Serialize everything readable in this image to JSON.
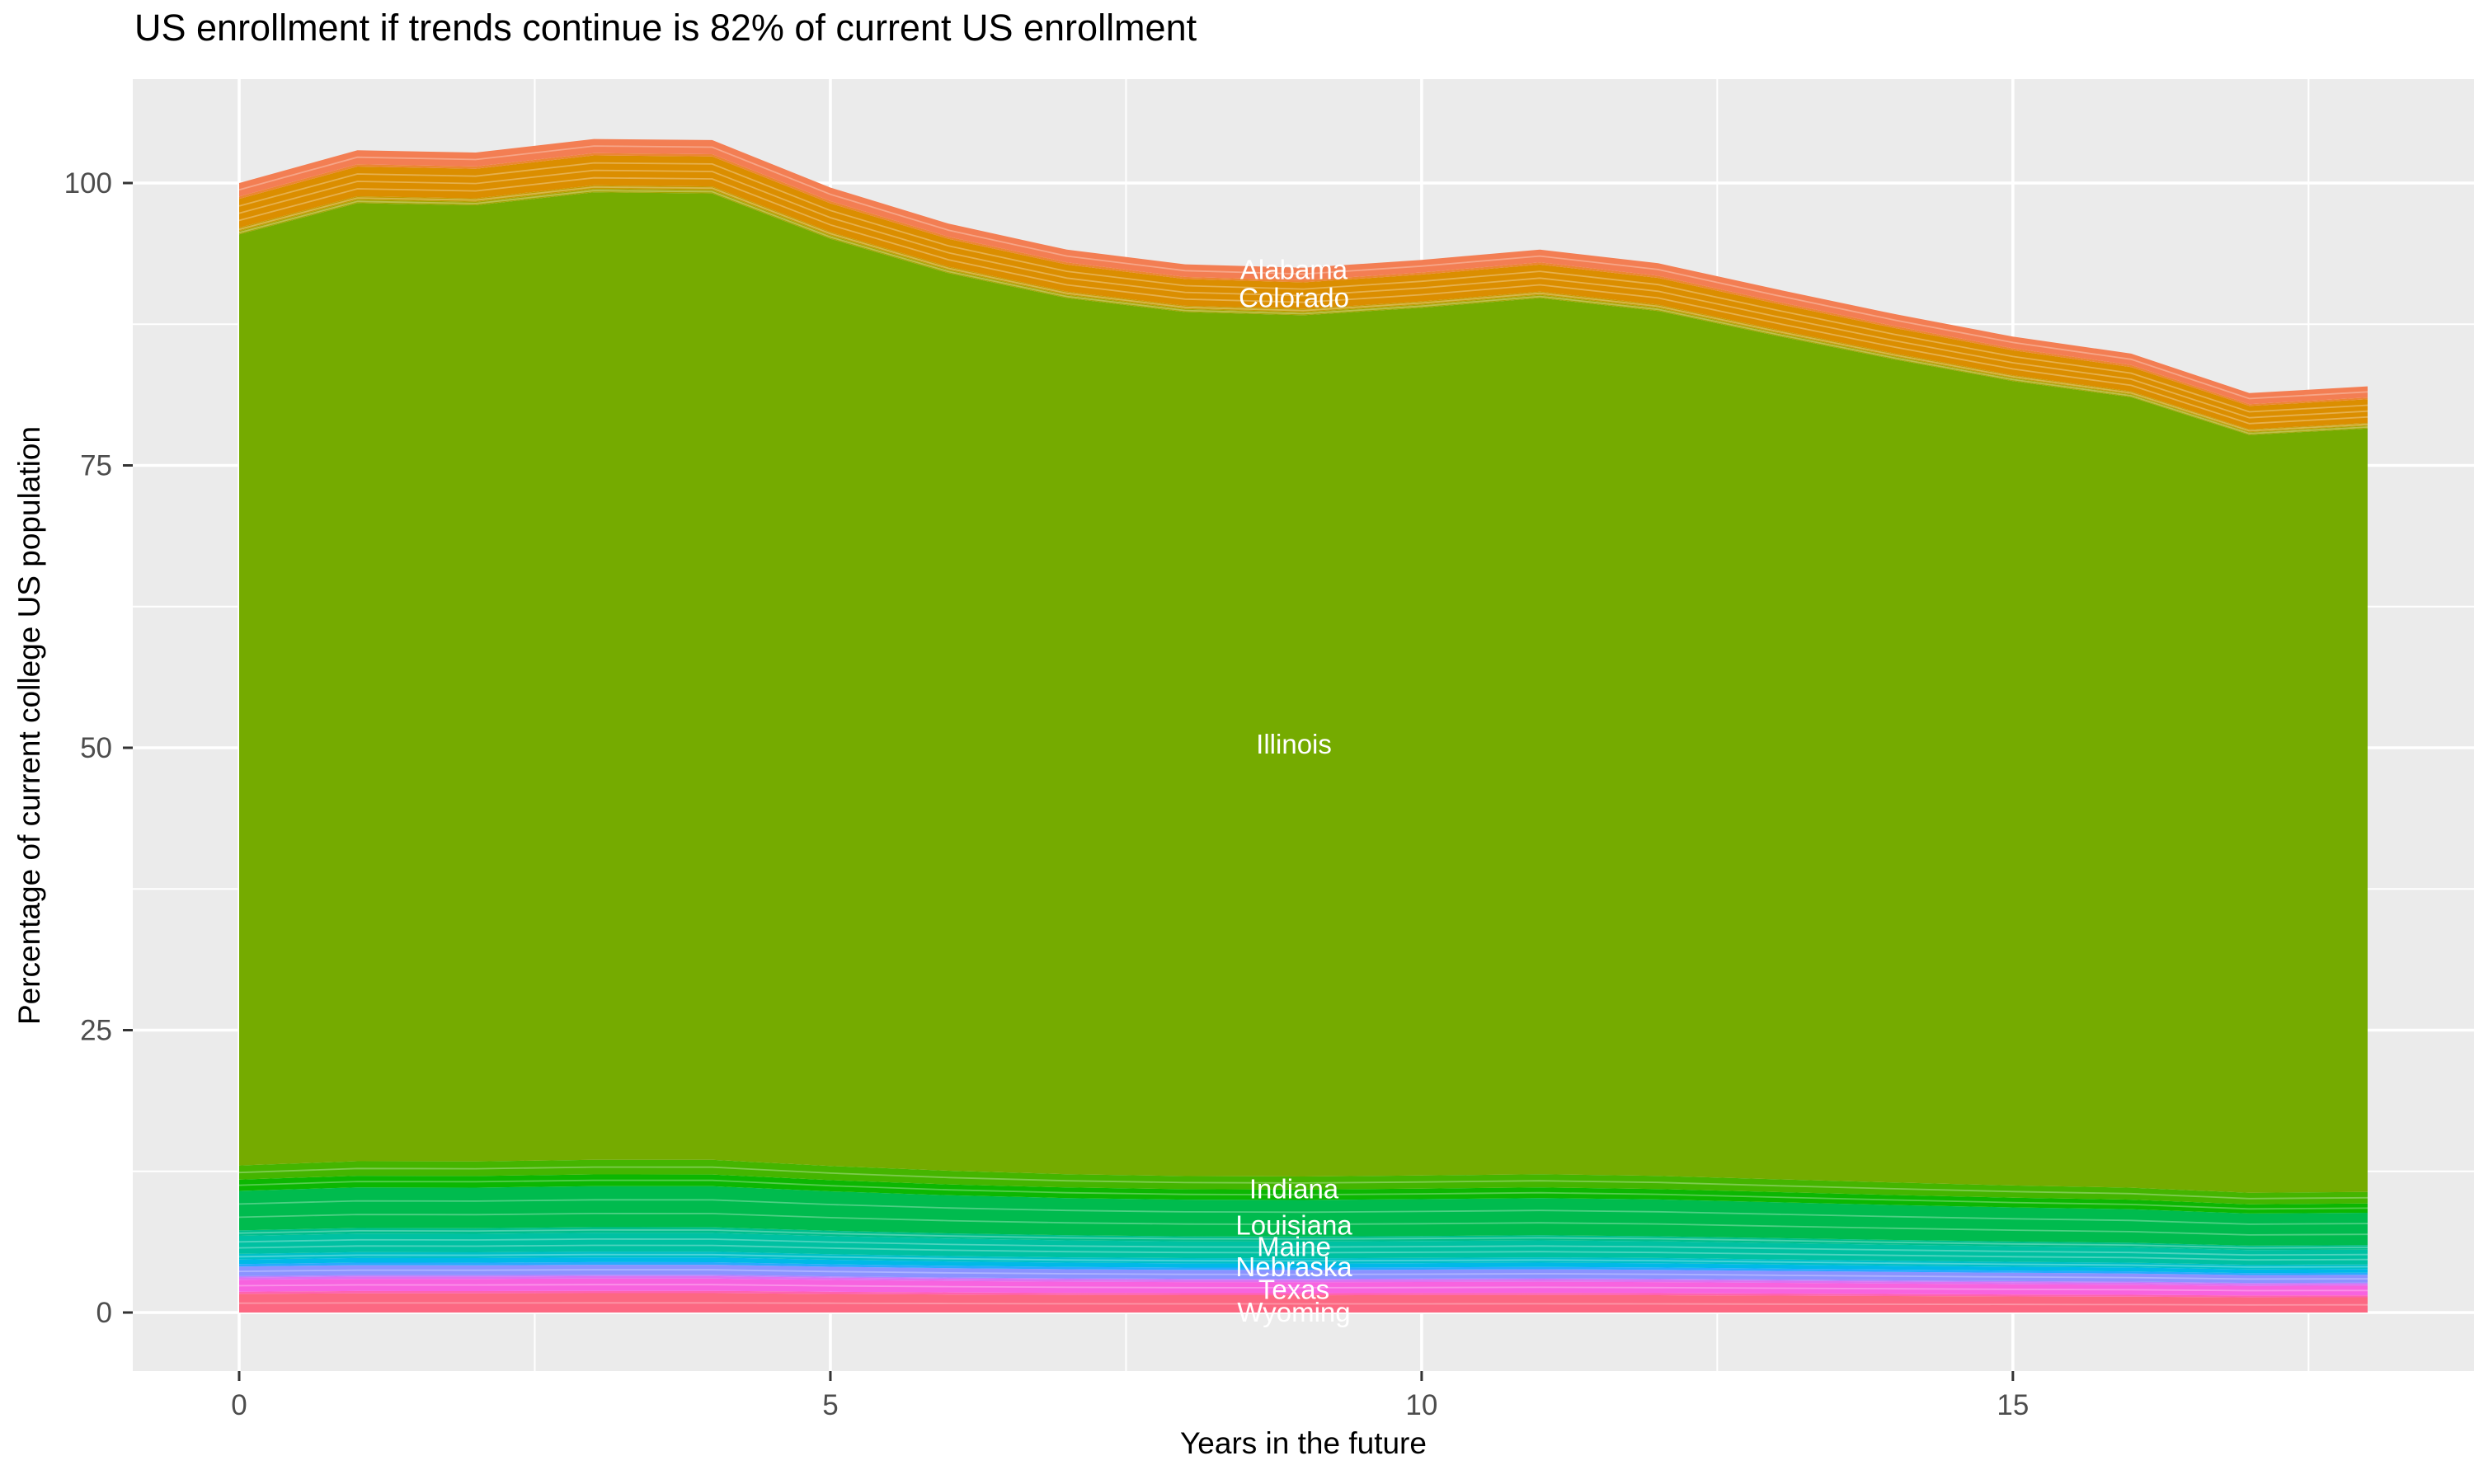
{
  "chart": {
    "title": "US enrollment if trends continue is 82% of current US enrollment",
    "xlabel": "Years in the future",
    "ylabel": "Percentage of current college US population"
  },
  "chart_data": {
    "type": "area",
    "stacked": true,
    "title": "US enrollment if trends continue is 82% of current US enrollment",
    "xlabel": "Years in the future",
    "ylabel": "Percentage of current college US population",
    "x": [
      0,
      1,
      2,
      3,
      4,
      5,
      6,
      7,
      8,
      9,
      10,
      11,
      12,
      13,
      14,
      15,
      16,
      17,
      18
    ],
    "x_ticks": [
      0,
      5,
      10,
      15
    ],
    "y_ticks": [
      0,
      25,
      50,
      75,
      100
    ],
    "xlim": [
      0,
      18
    ],
    "ylim": [
      -5.2,
      109.2
    ],
    "grid": true,
    "legend": "none",
    "panel_bg": "#EBEBEB",
    "grid_color": "#FFFFFF",
    "tick_mark_color": "#333333",
    "tick_label_color": "#4D4D4D",
    "area_label_color": "#FFFFFF",
    "total_top": [
      100.0,
      102.9,
      102.7,
      103.9,
      103.8,
      99.6,
      96.4,
      94.1,
      92.8,
      92.5,
      93.2,
      94.1,
      92.9,
      90.6,
      88.4,
      86.4,
      84.9,
      81.4,
      82.0
    ],
    "final_value_pct": 82,
    "series": [
      {
        "name": "Wyoming",
        "color": "#FC6882",
        "share": 0.0165,
        "labeled": true,
        "sublines": 1
      },
      {
        "name": "other states (pink)",
        "color": "#FF62B0",
        "share": 0.002,
        "labeled": false,
        "sublines": 0
      },
      {
        "name": "Texas",
        "color": "#F763DF",
        "share": 0.0105,
        "labeled": true,
        "sublines": 1
      },
      {
        "name": "other states (violet)",
        "color": "#DE71F1",
        "share": 0.002,
        "labeled": false,
        "sublines": 0
      },
      {
        "name": "other states (purple)",
        "color": "#BC80FF",
        "share": 0.0012,
        "labeled": false,
        "sublines": 0
      },
      {
        "name": "other states (periwinkle)",
        "color": "#8B93FF",
        "share": 0.0085,
        "labeled": false,
        "sublines": 1
      },
      {
        "name": "other states (azure)",
        "color": "#29A9FF",
        "share": 0.0022,
        "labeled": false,
        "sublines": 0
      },
      {
        "name": "Nebraska",
        "color": "#00B9E7",
        "share": 0.004,
        "labeled": true,
        "sublines": 0
      },
      {
        "name": "other states (light cyan)",
        "color": "#00C0C8",
        "share": 0.005,
        "labeled": false,
        "sublines": 1
      },
      {
        "name": "Maine",
        "color": "#00C1A2",
        "share": 0.016,
        "labeled": true,
        "sublines": 2
      },
      {
        "name": "other states (sea green)",
        "color": "#00BE8C",
        "share": 0.0048,
        "labeled": false,
        "sublines": 1
      },
      {
        "name": "Louisiana",
        "color": "#00BB4E",
        "share": 0.035,
        "labeled": true,
        "sublines": 2
      },
      {
        "name": "other states (bright green)",
        "color": "#0CB702",
        "share": 0.01,
        "labeled": false,
        "sublines": 1
      },
      {
        "name": "Indiana",
        "color": "#45B500",
        "share": 0.0125,
        "labeled": true,
        "sublines": 1
      },
      {
        "name": "Illinois",
        "color": "#75AB00",
        "share": 0.8243,
        "labeled": true,
        "sublines": 0
      },
      {
        "name": "other states (olive)",
        "color": "#A3A500",
        "share": 0.003,
        "labeled": false,
        "sublines": 1
      },
      {
        "name": "other states (yellow)",
        "color": "#C49A00",
        "share": 0.003,
        "labeled": false,
        "sublines": 1
      },
      {
        "name": "Colorado",
        "color": "#DB8E00",
        "share": 0.0255,
        "labeled": true,
        "sublines": 3
      },
      {
        "name": "other states (orange)",
        "color": "#EC8633",
        "share": 0.002,
        "labeled": false,
        "sublines": 0
      },
      {
        "name": "Alabama",
        "color": "#F37E53",
        "share": 0.012,
        "labeled": true,
        "sublines": 1
      }
    ],
    "state_labels": [
      {
        "text": "Alabama",
        "x": 8.92,
        "y": 92.3
      },
      {
        "text": "Colorado",
        "x": 8.92,
        "y": 89.8
      },
      {
        "text": "Illinois",
        "x": 8.92,
        "y": 50.3
      },
      {
        "text": "Indiana",
        "x": 8.92,
        "y": 10.9
      },
      {
        "text": "Louisiana",
        "x": 8.92,
        "y": 7.7
      },
      {
        "text": "Maine",
        "x": 8.92,
        "y": 5.8
      },
      {
        "text": "Nebraska",
        "x": 8.92,
        "y": 4.0
      },
      {
        "text": "Texas",
        "x": 8.92,
        "y": 2.0
      },
      {
        "text": "Wyoming",
        "x": 8.92,
        "y": 0.0
      }
    ]
  }
}
